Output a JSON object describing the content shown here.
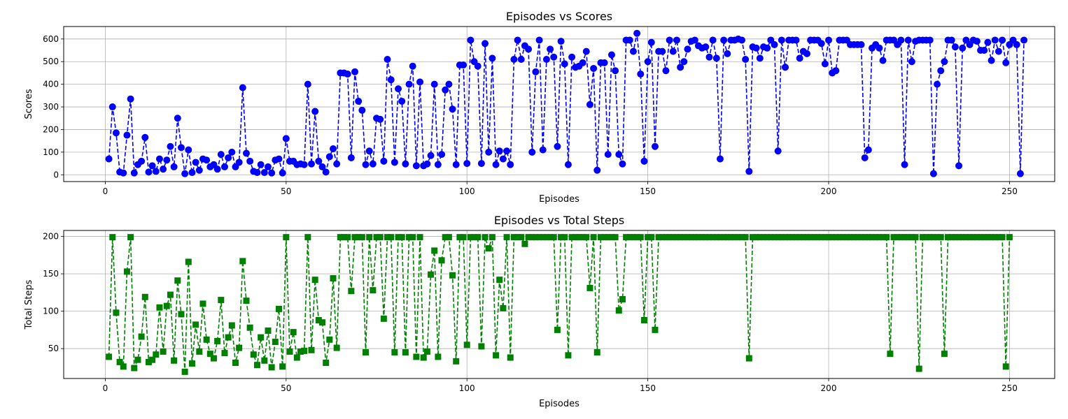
{
  "chart_data": [
    {
      "type": "line",
      "title": "Episodes vs Scores",
      "xlabel": "Episodes",
      "ylabel": "Scores",
      "xlim": [
        -11.5,
        262.5
      ],
      "ylim": [
        -30,
        655
      ],
      "xticks": [
        0,
        50,
        100,
        150,
        200,
        250
      ],
      "yticks": [
        0,
        100,
        200,
        300,
        400,
        500,
        600
      ],
      "grid": true,
      "series": [
        {
          "color": "#0000ff",
          "marker": "circle",
          "linestyle": "dashed",
          "x_start": 1,
          "values": [
            70,
            300,
            185,
            12,
            8,
            175,
            335,
            8,
            45,
            60,
            165,
            12,
            40,
            15,
            70,
            25,
            65,
            125,
            35,
            250,
            120,
            5,
            110,
            10,
            55,
            20,
            70,
            65,
            35,
            45,
            25,
            90,
            35,
            75,
            100,
            35,
            55,
            385,
            95,
            60,
            15,
            10,
            45,
            10,
            35,
            8,
            65,
            70,
            8,
            160,
            60,
            60,
            45,
            48,
            45,
            400,
            48,
            280,
            60,
            35,
            12,
            80,
            115,
            48,
            450,
            450,
            445,
            75,
            455,
            325,
            285,
            45,
            105,
            48,
            250,
            245,
            60,
            510,
            420,
            55,
            380,
            325,
            48,
            400,
            480,
            40,
            410,
            40,
            48,
            85,
            400,
            45,
            90,
            375,
            400,
            290,
            45,
            485,
            485,
            50,
            595,
            500,
            480,
            50,
            580,
            100,
            515,
            45,
            105,
            70,
            105,
            45,
            510,
            595,
            510,
            570,
            555,
            100,
            455,
            595,
            110,
            510,
            555,
            520,
            125,
            590,
            490,
            45,
            520,
            475,
            480,
            495,
            545,
            310,
            470,
            20,
            495,
            495,
            90,
            530,
            460,
            90,
            48,
            595,
            595,
            545,
            625,
            445,
            60,
            500,
            585,
            125,
            545,
            545,
            460,
            595,
            545,
            595,
            475,
            500,
            555,
            590,
            595,
            570,
            560,
            565,
            520,
            595,
            515,
            70,
            595,
            535,
            595,
            595,
            600,
            595,
            510,
            15,
            565,
            560,
            515,
            565,
            560,
            595,
            575,
            105,
            595,
            475,
            595,
            595,
            595,
            515,
            545,
            535,
            595,
            595,
            595,
            580,
            490,
            595,
            450,
            460,
            595,
            595,
            595,
            575,
            575,
            575,
            575,
            75,
            110,
            560,
            575,
            560,
            505,
            595,
            595,
            595,
            575,
            595,
            45,
            595,
            500,
            590,
            595,
            595,
            595,
            595,
            5,
            400,
            460,
            500,
            595,
            595,
            565,
            40,
            560,
            595,
            575,
            595,
            590,
            550,
            550,
            585,
            505,
            595,
            545,
            595,
            495,
            575,
            595,
            575,
            5,
            595
          ]
        }
      ]
    },
    {
      "type": "line",
      "title": "Episodes vs Total Steps",
      "xlabel": "Episodes",
      "ylabel": "Total Steps",
      "xlim": [
        -11.5,
        262.5
      ],
      "ylim": [
        10,
        208
      ],
      "xticks": [
        0,
        50,
        100,
        150,
        200,
        250
      ],
      "yticks": [
        50,
        100,
        150,
        200
      ],
      "grid": true,
      "series": [
        {
          "color": "#008000",
          "marker": "square",
          "linestyle": "dashed",
          "x_start": 1,
          "values": [
            39,
            199,
            98,
            32,
            26,
            153,
            199,
            24,
            35,
            66,
            119,
            32,
            35,
            42,
            105,
            46,
            107,
            122,
            34,
            141,
            96,
            19,
            166,
            30,
            82,
            46,
            110,
            62,
            43,
            37,
            60,
            115,
            44,
            65,
            81,
            31,
            51,
            167,
            114,
            78,
            42,
            28,
            65,
            34,
            74,
            25,
            59,
            103,
            26,
            199,
            46,
            72,
            38,
            46,
            47,
            199,
            48,
            142,
            88,
            85,
            31,
            62,
            144,
            51,
            199,
            199,
            199,
            127,
            199,
            199,
            199,
            45,
            199,
            128,
            199,
            199,
            90,
            199,
            199,
            45,
            199,
            199,
            45,
            199,
            199,
            39,
            199,
            38,
            46,
            149,
            181,
            39,
            168,
            199,
            199,
            148,
            33,
            199,
            199,
            55,
            199,
            199,
            199,
            53,
            199,
            184,
            199,
            41,
            142,
            104,
            199,
            38,
            199,
            199,
            199,
            190,
            199,
            199,
            199,
            199,
            199,
            199,
            199,
            199,
            75,
            199,
            199,
            41,
            199,
            199,
            199,
            199,
            199,
            131,
            199,
            45,
            199,
            199,
            199,
            199,
            199,
            101,
            116,
            199,
            199,
            199,
            199,
            199,
            88,
            199,
            199,
            75,
            199,
            199,
            199,
            199,
            199,
            199,
            199,
            199,
            199,
            199,
            199,
            199,
            199,
            199,
            199,
            199,
            199,
            199,
            199,
            199,
            199,
            199,
            199,
            199,
            199,
            37,
            199,
            199,
            199,
            199,
            199,
            199,
            199,
            199,
            199,
            199,
            199,
            199,
            199,
            199,
            199,
            199,
            199,
            199,
            199,
            199,
            199,
            199,
            199,
            199,
            199,
            199,
            199,
            199,
            199,
            199,
            199,
            199,
            199,
            199,
            199,
            199,
            199,
            199,
            43,
            199,
            199,
            199,
            199,
            199,
            199,
            199,
            23,
            199,
            199,
            199,
            199,
            199,
            199,
            43,
            199,
            199,
            199,
            199,
            199,
            199,
            199,
            199,
            199,
            199,
            199,
            199,
            199,
            199,
            199,
            199,
            26,
            199
          ]
        }
      ]
    }
  ]
}
